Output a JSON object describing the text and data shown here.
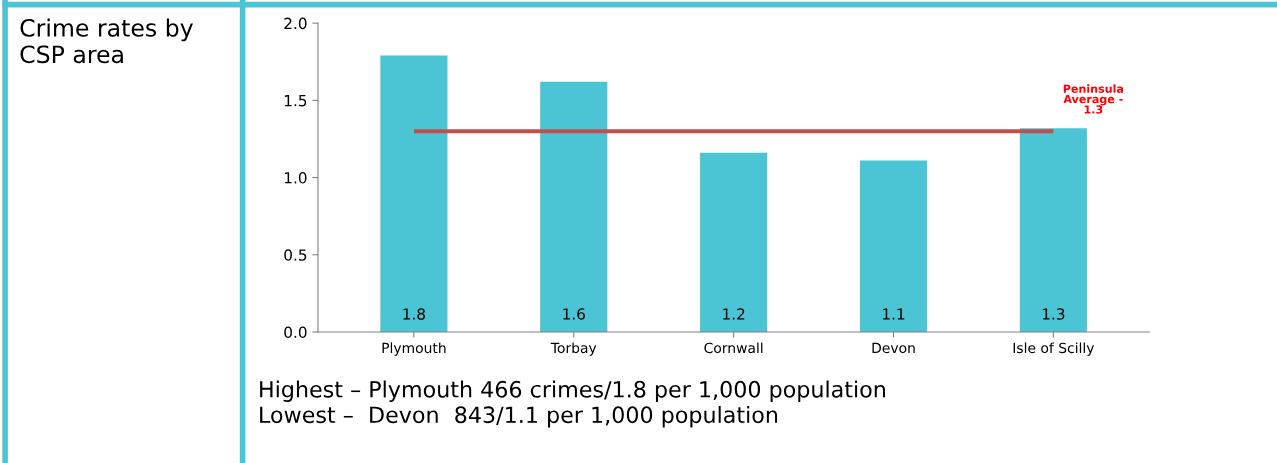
{
  "chart_data": {
    "type": "bar",
    "categories": [
      "Plymouth",
      "Torbay",
      "Cornwall",
      "Devon",
      "Isle of Scilly"
    ],
    "values": [
      1.79,
      1.62,
      1.16,
      1.11,
      1.32
    ],
    "value_labels": [
      "1.8",
      "1.6",
      "1.2",
      "1.1",
      "1.3"
    ],
    "color": "#4bc4d3",
    "ylim": [
      0,
      2.0
    ],
    "yticks": [
      {
        "value": 0,
        "label": "0.0"
      },
      {
        "value": 0.5,
        "label": "0.5"
      },
      {
        "value": 1.0,
        "label": "1.0"
      },
      {
        "value": 1.5,
        "label": "1.5"
      },
      {
        "value": 2.0,
        "label": "2.0"
      }
    ],
    "ref_lines": [
      {
        "axis": "y",
        "value": 1.3,
        "label": "Peninsula\nAverage -\n1.3",
        "color": "#c0504d"
      }
    ],
    "grid": false,
    "annotations": [
      "Crime rates by\nCSP area",
      "Highest – Plymouth 466 crimes/1.8 per 1,000 population",
      "Lowest –  Devon  843/1.1 per 1,000 population"
    ]
  }
}
